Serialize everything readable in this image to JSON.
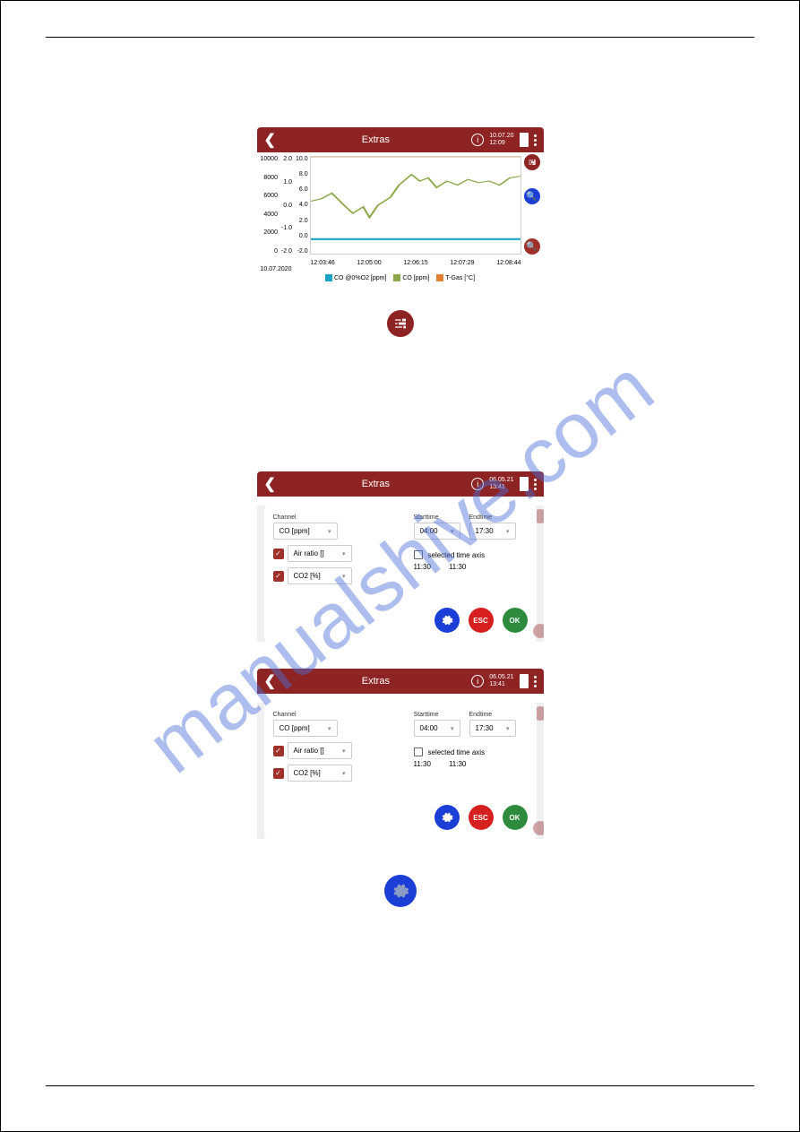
{
  "colors": {
    "brand_red": "#8e2323",
    "dark_red": "#a0302a",
    "blue_btn": "#1b3fd6",
    "green_btn": "#2e8b3e",
    "esc_red": "#d62020",
    "sliders_red": "#8e2323",
    "watermark": "#4b6fd8"
  },
  "watermark_text": "manualshive.com",
  "chart_screenshot": {
    "header": {
      "title": "Extras",
      "date": "10.07.20",
      "time": "12:09"
    },
    "y_axis_1": [
      "10000",
      "8000",
      "6000",
      "4000",
      "2000",
      "0"
    ],
    "y_axis_2": [
      "2.0",
      "1.0",
      "0.0",
      "-1.0",
      "-2.0"
    ],
    "y_axis_3": [
      "10.0",
      "8.0",
      "6.0",
      "4.0",
      "2.0",
      "0.0",
      "-2.0"
    ],
    "x_axis": [
      "12:03:46",
      "12:05:00",
      "12:06:15",
      "12:07:29",
      "12:08:44"
    ],
    "date_label": "10.07.2020",
    "legend": [
      {
        "color": "#1ba3c6",
        "label": "CO @0%O2 [ppm]"
      },
      {
        "color": "#8aa84a",
        "label": "CO [ppm]"
      },
      {
        "color": "#e08030",
        "label": "T-Gas [°C]"
      }
    ],
    "cyan_line_y": 0,
    "green_line_points": [
      [
        0,
        4.5
      ],
      [
        5,
        4.8
      ],
      [
        10,
        5.5
      ],
      [
        15,
        4.2
      ],
      [
        20,
        3.0
      ],
      [
        25,
        3.8
      ],
      [
        28,
        2.5
      ],
      [
        32,
        4.0
      ],
      [
        38,
        5.0
      ],
      [
        42,
        6.5
      ],
      [
        48,
        7.8
      ],
      [
        52,
        7.0
      ],
      [
        56,
        7.4
      ],
      [
        60,
        6.2
      ],
      [
        65,
        7.0
      ],
      [
        70,
        6.5
      ],
      [
        75,
        7.2
      ],
      [
        80,
        6.8
      ],
      [
        85,
        7.0
      ],
      [
        90,
        6.5
      ],
      [
        95,
        7.4
      ],
      [
        100,
        7.6
      ]
    ]
  },
  "settings_screenshot": {
    "header": {
      "title": "Extras",
      "date": "06.05.21",
      "time": "13:41"
    },
    "channel_label": "Channel",
    "starttime_label": "Starttime",
    "endtime_label": "Endtime",
    "dropdown_1": "CO [ppm]",
    "dropdown_2": "Air ratio []",
    "dropdown_3": "CO2 [%]",
    "starttime_value": "04:00",
    "endtime_value": "17:30",
    "selected_time_axis_label": "selected time axis",
    "time_val_1": "11:30",
    "time_val_2": "11:30",
    "esc_label": "ESC",
    "ok_label": "OK"
  }
}
